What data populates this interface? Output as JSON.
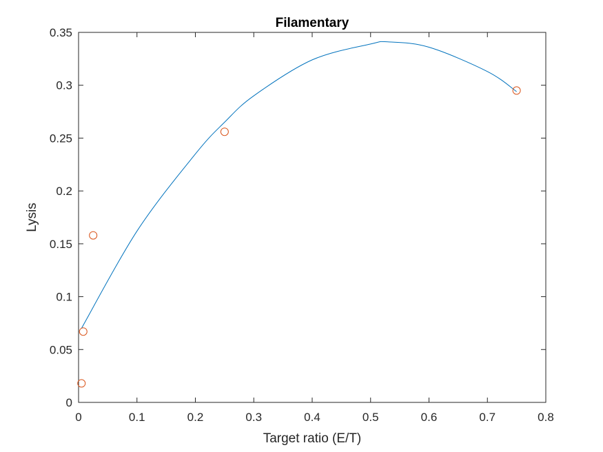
{
  "chart_data": {
    "type": "scatter",
    "title": "Filamentary",
    "xlabel": "Target ratio (E/T)",
    "ylabel": "Lysis",
    "xlim": [
      0,
      0.8
    ],
    "ylim": [
      0,
      0.35
    ],
    "xticks": [
      "0",
      "0.1",
      "0.2",
      "0.3",
      "0.4",
      "0.5",
      "0.6",
      "0.7",
      "0.8"
    ],
    "yticks": [
      "0",
      "0.05",
      "0.1",
      "0.15",
      "0.2",
      "0.25",
      "0.3",
      "0.35"
    ],
    "grid": false,
    "series": [
      {
        "kind": "scatter",
        "marker": "circle-open",
        "color": "#D95319",
        "x": [
          0.005,
          0.008,
          0.025,
          0.25,
          0.75
        ],
        "y": [
          0.018,
          0.067,
          0.158,
          0.256,
          0.295
        ]
      },
      {
        "kind": "line",
        "color": "#0072BD",
        "x": [
          0.005,
          0.1,
          0.2,
          0.25,
          0.3,
          0.4,
          0.5,
          0.53,
          0.6,
          0.7,
          0.75
        ],
        "y": [
          0.07,
          0.162,
          0.235,
          0.265,
          0.29,
          0.324,
          0.339,
          0.341,
          0.336,
          0.313,
          0.294
        ]
      }
    ]
  }
}
